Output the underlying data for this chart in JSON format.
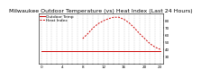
{
  "title": "Milwaukee Outdoor Temperature (vs) Heat Index (Last 24 Hours)",
  "legend_label_temp": "Outdoor Temp",
  "legend_label_hi": "Heat Index",
  "background_color": "#ffffff",
  "grid_color": "#aaaaaa",
  "line_color": "#cc0000",
  "ylim": [
    20,
    90
  ],
  "yticks": [
    30,
    40,
    50,
    60,
    70,
    80
  ],
  "hours": [
    0,
    1,
    2,
    3,
    4,
    5,
    6,
    7,
    8,
    9,
    10,
    11,
    12,
    13,
    14,
    15,
    16,
    17,
    18,
    19,
    20,
    21,
    22,
    23
  ],
  "outdoor_temp": [
    38,
    38,
    38,
    38,
    38,
    38,
    38,
    38,
    38,
    38,
    38,
    38,
    38,
    38,
    38,
    38,
    38,
    38,
    38,
    38,
    38,
    38,
    38,
    38
  ],
  "heat_index": [
    null,
    null,
    null,
    null,
    null,
    null,
    null,
    null,
    55,
    62,
    70,
    76,
    80,
    83,
    85,
    85,
    82,
    77,
    70,
    62,
    55,
    48,
    43,
    40
  ],
  "xlabels": [
    "0",
    "",
    "",
    "",
    "4",
    "",
    "",
    "",
    "8",
    "",
    "",
    "",
    "12",
    "",
    "",
    "",
    "16",
    "",
    "",
    "",
    "20",
    "",
    "",
    "23"
  ],
  "title_fontsize": 4.5,
  "tick_fontsize": 3.0,
  "legend_fontsize": 3.2
}
